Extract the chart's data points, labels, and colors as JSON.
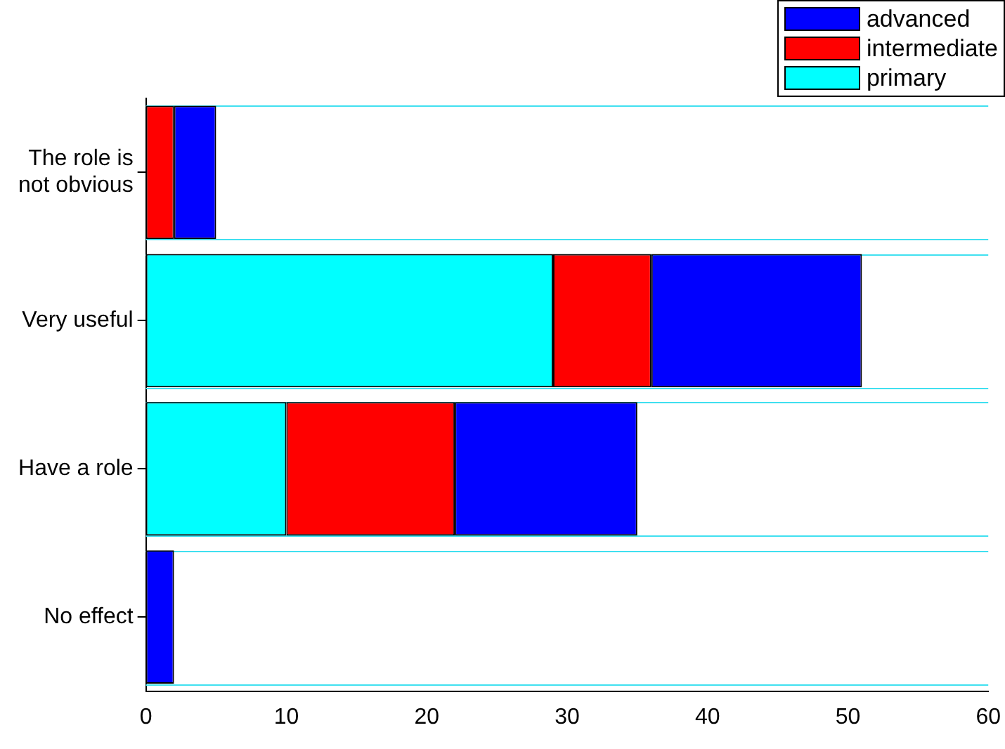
{
  "chart_data": {
    "type": "bar",
    "orientation": "horizontal",
    "stacked": true,
    "categories": [
      "The role is not obvious",
      "Very useful",
      "Have a role",
      "No effect"
    ],
    "series": [
      {
        "name": "primary",
        "color": "#00ffff",
        "values": [
          0,
          29,
          10,
          0
        ]
      },
      {
        "name": "intermediate",
        "color": "#ff0000",
        "values": [
          2,
          7,
          12,
          0
        ]
      },
      {
        "name": "advanced",
        "color": "#0000ff",
        "values": [
          3,
          15,
          13,
          2
        ]
      }
    ],
    "xlim": [
      0,
      60
    ],
    "xticks": [
      0,
      10,
      20,
      30,
      40,
      50,
      60
    ],
    "grid": "y",
    "legend": "top right"
  }
}
